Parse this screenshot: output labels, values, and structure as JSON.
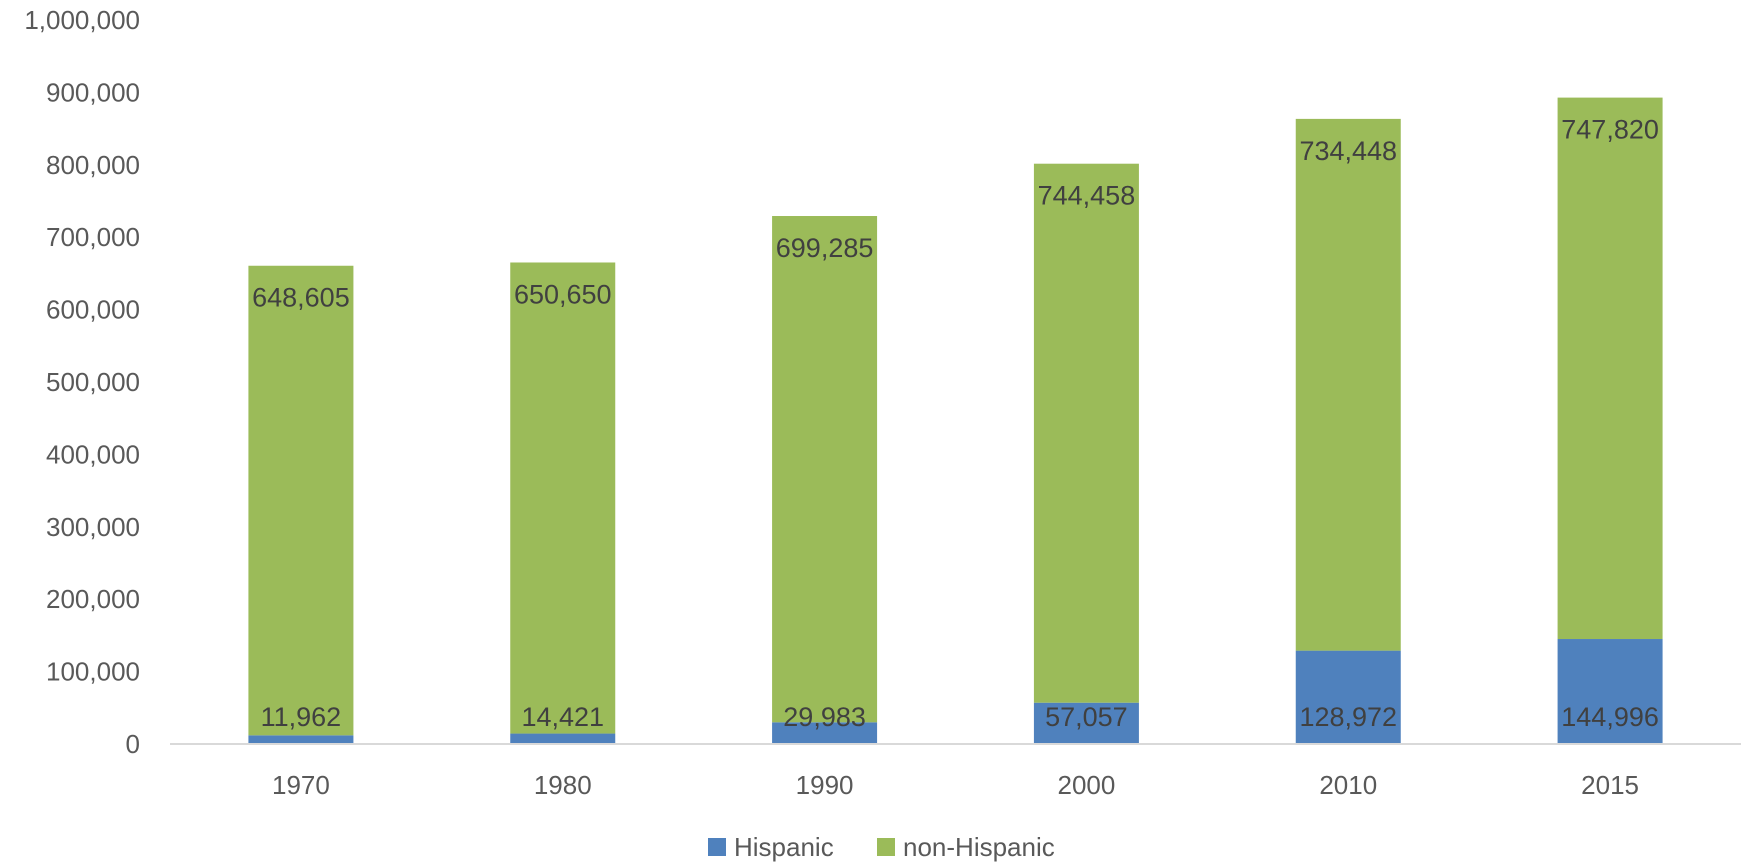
{
  "chart_data": {
    "type": "bar",
    "stacked": true,
    "categories": [
      "1970",
      "1980",
      "1990",
      "2000",
      "2010",
      "2015"
    ],
    "series": [
      {
        "name": "Hispanic",
        "color": "#4f81bd",
        "values": [
          11962,
          14421,
          29983,
          57057,
          128972,
          144996
        ],
        "labels": [
          "11,962",
          "14,421",
          "29,983",
          "57,057",
          "128,972",
          "144,996"
        ]
      },
      {
        "name": "non-Hispanic",
        "color": "#9bbb59",
        "values": [
          648605,
          650650,
          699285,
          744458,
          734448,
          747820
        ],
        "labels": [
          "648,605",
          "650,650",
          "699,285",
          "744,458",
          "734,448",
          "747,820"
        ]
      }
    ],
    "ylim": [
      0,
      1000000
    ],
    "yticks": [
      0,
      100000,
      200000,
      300000,
      400000,
      500000,
      600000,
      700000,
      800000,
      900000,
      1000000
    ],
    "ytick_labels": [
      "0",
      "100,000",
      "200,000",
      "300,000",
      "400,000",
      "500,000",
      "600,000",
      "700,000",
      "800,000",
      "900,000",
      "1,000,000"
    ],
    "grid": false,
    "legend": "bottom",
    "colors": {
      "axis_text": "#595959",
      "label_text": "#404040",
      "axis_line": "#d9d9d9"
    }
  }
}
